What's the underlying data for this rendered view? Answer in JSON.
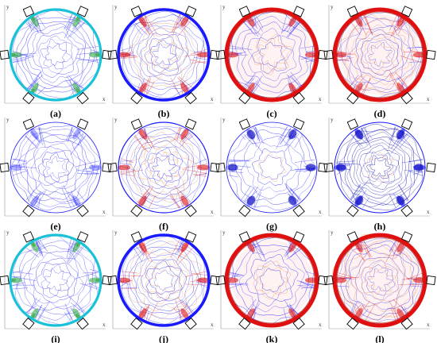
{
  "axis_labels": {
    "x": "x",
    "y": "y"
  },
  "panels": [
    {
      "label": "(a)",
      "palette": "cyan-blue"
    },
    {
      "label": "(b)",
      "palette": "blue-red"
    },
    {
      "label": "(c)",
      "palette": "red-ring"
    },
    {
      "label": "(d)",
      "palette": "red-blue"
    },
    {
      "label": "(e)",
      "palette": "blue-light"
    },
    {
      "label": "(f)",
      "palette": "mixed"
    },
    {
      "label": "(g)",
      "palette": "blue-sparse"
    },
    {
      "label": "(h)",
      "palette": "blue-dense"
    },
    {
      "label": "(i)",
      "palette": "cyan-blue"
    },
    {
      "label": "(j)",
      "palette": "blue-red"
    },
    {
      "label": "(k)",
      "palette": "red-ring"
    },
    {
      "label": "(l)",
      "palette": "red-blue"
    }
  ],
  "colors": {
    "blue": "#1a1aff",
    "navy": "#0000b0",
    "red": "#e01010",
    "darkred": "#a00000",
    "cyan": "#19c2d8",
    "green": "#36a84a",
    "orange": "#e07a3a",
    "square_stroke": "#000000"
  }
}
